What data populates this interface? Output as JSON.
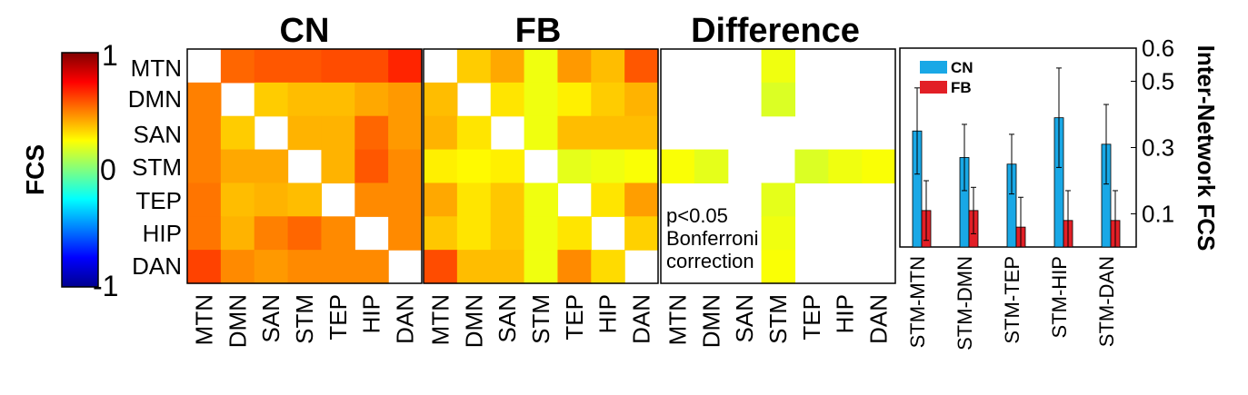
{
  "chart_data": {
    "networks": [
      "MTN",
      "DMN",
      "SAN",
      "STM",
      "TEP",
      "HIP",
      "DAN"
    ],
    "colorbar": {
      "label": "FCS",
      "max_label": "1",
      "mid_label": "0",
      "min_label": "-1",
      "range": [
        -1,
        1
      ]
    },
    "heatmaps": [
      {
        "type": "heatmap",
        "title": "CN",
        "values": [
          [
            null,
            0.55,
            0.58,
            0.58,
            0.6,
            0.6,
            0.68
          ],
          [
            0.5,
            null,
            0.35,
            0.38,
            0.38,
            0.42,
            0.45
          ],
          [
            0.5,
            0.35,
            null,
            0.4,
            0.4,
            0.55,
            0.45
          ],
          [
            0.5,
            0.42,
            0.42,
            null,
            0.4,
            0.58,
            0.48
          ],
          [
            0.52,
            0.38,
            0.4,
            0.38,
            null,
            0.48,
            0.48
          ],
          [
            0.52,
            0.4,
            0.5,
            0.55,
            0.48,
            null,
            0.48
          ],
          [
            0.62,
            0.48,
            0.45,
            0.48,
            0.48,
            0.48,
            null
          ]
        ]
      },
      {
        "type": "heatmap",
        "title": "FB",
        "values": [
          [
            null,
            0.35,
            0.42,
            0.22,
            0.45,
            0.38,
            0.58
          ],
          [
            0.38,
            null,
            0.3,
            0.22,
            0.28,
            0.35,
            0.4
          ],
          [
            0.4,
            0.3,
            null,
            0.22,
            0.38,
            0.38,
            0.38
          ],
          [
            0.28,
            0.26,
            0.28,
            null,
            0.2,
            0.22,
            0.24
          ],
          [
            0.42,
            0.3,
            0.36,
            0.22,
            null,
            0.3,
            0.44
          ],
          [
            0.36,
            0.3,
            0.36,
            0.22,
            0.3,
            null,
            0.34
          ],
          [
            0.6,
            0.38,
            0.38,
            0.22,
            0.48,
            0.32,
            null
          ]
        ]
      },
      {
        "type": "heatmap",
        "title": "Difference",
        "annotation": [
          "p<0.05",
          "Bonferroni",
          "correction"
        ],
        "values": [
          [
            null,
            null,
            null,
            0.22,
            null,
            null,
            null
          ],
          [
            null,
            null,
            null,
            0.18,
            null,
            null,
            null
          ],
          [
            null,
            null,
            null,
            null,
            null,
            null,
            null
          ],
          [
            0.24,
            0.2,
            null,
            null,
            0.18,
            0.22,
            0.24
          ],
          [
            null,
            null,
            null,
            0.2,
            null,
            null,
            null
          ],
          [
            null,
            null,
            null,
            0.22,
            null,
            null,
            null
          ],
          [
            null,
            null,
            null,
            0.24,
            null,
            null,
            null
          ]
        ]
      }
    ],
    "bar_chart": {
      "type": "bar",
      "categories": [
        "STM-MTN",
        "STM-DMN",
        "STM-TEP",
        "STM-HIP",
        "STM-DAN"
      ],
      "series": [
        {
          "name": "CN",
          "color": "#19a8e6",
          "values": [
            0.35,
            0.27,
            0.25,
            0.39,
            0.31
          ],
          "errors": [
            0.13,
            0.1,
            0.09,
            0.15,
            0.12
          ]
        },
        {
          "name": "FB",
          "color": "#e21f26",
          "values": [
            0.11,
            0.11,
            0.06,
            0.08,
            0.08
          ],
          "errors": [
            0.09,
            0.07,
            0.09,
            0.09,
            0.09
          ]
        }
      ],
      "ylabel": "Inter-Network FCS",
      "ylim": [
        0,
        0.6
      ],
      "yticks": [
        "0.1",
        "0.3",
        "0.5",
        "0.6"
      ]
    }
  }
}
